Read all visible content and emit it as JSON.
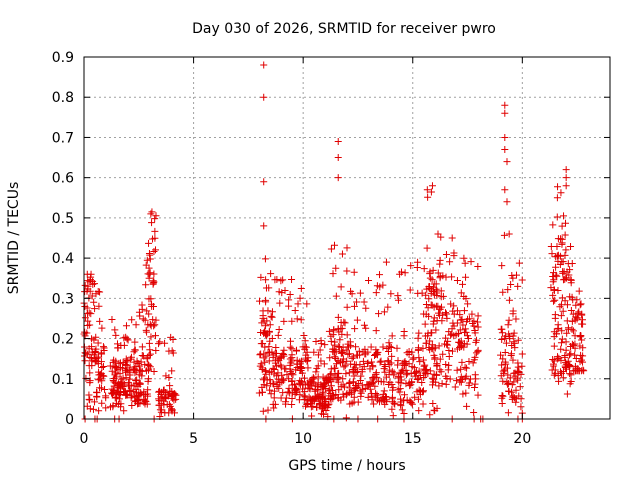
{
  "chart_data": {
    "type": "scatter",
    "title": "Day 030 of 2026, SRMTID for receiver pwro",
    "xlabel": "GPS time / hours",
    "ylabel": "SRMTID / TECUs",
    "xlim": [
      0,
      24
    ],
    "ylim": [
      0,
      0.9
    ],
    "x_ticks": [
      0,
      5,
      10,
      15,
      20
    ],
    "x_tick_labels": [
      "0",
      "5",
      "10",
      "15",
      "20"
    ],
    "y_ticks": [
      0,
      0.1,
      0.2,
      0.3,
      0.4,
      0.5,
      0.6,
      0.7,
      0.8,
      0.9
    ],
    "y_tick_labels": [
      "0",
      "0.1",
      "0.2",
      "0.3",
      "0.4",
      "0.5",
      "0.6",
      "0.7",
      "0.8",
      "0.9"
    ],
    "grid": true,
    "marker": "+",
    "marker_color": "#e00000",
    "clusters": [
      {
        "x_start": 0.0,
        "x_end": 0.55,
        "y_min": 0.0,
        "y_max": 0.36,
        "typical": 0.25,
        "count": 70
      },
      {
        "x_start": 0.55,
        "x_end": 1.0,
        "y_min": 0.0,
        "y_max": 0.32,
        "typical": 0.12,
        "count": 40
      },
      {
        "x_start": 1.2,
        "x_end": 2.2,
        "y_min": 0.02,
        "y_max": 0.25,
        "typical": 0.1,
        "count": 110
      },
      {
        "x_start": 2.2,
        "x_end": 3.0,
        "y_min": 0.02,
        "y_max": 0.3,
        "typical": 0.12,
        "count": 80
      },
      {
        "x_start": 2.8,
        "x_end": 3.3,
        "y_min": 0.1,
        "y_max": 0.52,
        "typical": 0.3,
        "count": 50
      },
      {
        "x_start": 3.4,
        "x_end": 4.2,
        "y_min": 0.0,
        "y_max": 0.22,
        "typical": 0.05,
        "count": 60
      },
      {
        "x_start": 8.0,
        "x_end": 8.6,
        "y_min": 0.0,
        "y_max": 0.44,
        "typical": 0.2,
        "count": 70
      },
      {
        "x_start": 8.6,
        "x_end": 10.2,
        "y_min": 0.0,
        "y_max": 0.35,
        "typical": 0.12,
        "count": 150
      },
      {
        "x_start": 10.2,
        "x_end": 11.2,
        "y_min": 0.0,
        "y_max": 0.22,
        "typical": 0.07,
        "count": 110
      },
      {
        "x_start": 11.2,
        "x_end": 12.2,
        "y_min": 0.0,
        "y_max": 0.45,
        "typical": 0.15,
        "count": 110
      },
      {
        "x_start": 12.2,
        "x_end": 15.5,
        "y_min": 0.0,
        "y_max": 0.39,
        "typical": 0.12,
        "count": 260
      },
      {
        "x_start": 15.5,
        "x_end": 16.4,
        "y_min": 0.0,
        "y_max": 0.58,
        "typical": 0.25,
        "count": 110
      },
      {
        "x_start": 16.4,
        "x_end": 18.0,
        "y_min": 0.0,
        "y_max": 0.45,
        "typical": 0.18,
        "count": 120
      },
      {
        "x_start": 19.0,
        "x_end": 20.0,
        "y_min": 0.0,
        "y_max": 0.46,
        "typical": 0.15,
        "count": 90
      },
      {
        "x_start": 21.3,
        "x_end": 22.3,
        "y_min": 0.06,
        "y_max": 0.62,
        "typical": 0.3,
        "count": 130
      },
      {
        "x_start": 22.3,
        "x_end": 22.8,
        "y_min": 0.12,
        "y_max": 0.35,
        "typical": 0.2,
        "count": 50
      }
    ],
    "notable_points": [
      {
        "x": 8.2,
        "y": 0.88
      },
      {
        "x": 8.2,
        "y": 0.8
      },
      {
        "x": 8.2,
        "y": 0.59
      },
      {
        "x": 8.2,
        "y": 0.48
      },
      {
        "x": 11.6,
        "y": 0.69
      },
      {
        "x": 11.6,
        "y": 0.65
      },
      {
        "x": 11.6,
        "y": 0.6
      },
      {
        "x": 3.1,
        "y": 0.515
      },
      {
        "x": 3.05,
        "y": 0.51
      },
      {
        "x": 0.15,
        "y": 0.36
      },
      {
        "x": 15.9,
        "y": 0.58
      },
      {
        "x": 16.8,
        "y": 0.45
      },
      {
        "x": 19.2,
        "y": 0.78
      },
      {
        "x": 19.2,
        "y": 0.76
      },
      {
        "x": 19.2,
        "y": 0.7
      },
      {
        "x": 19.2,
        "y": 0.67
      },
      {
        "x": 19.3,
        "y": 0.64
      },
      {
        "x": 19.2,
        "y": 0.57
      },
      {
        "x": 19.3,
        "y": 0.54
      },
      {
        "x": 19.4,
        "y": 0.46
      },
      {
        "x": 22.0,
        "y": 0.62
      },
      {
        "x": 22.0,
        "y": 0.6
      },
      {
        "x": 22.0,
        "y": 0.58
      },
      {
        "x": 21.6,
        "y": 0.55
      },
      {
        "x": 13.8,
        "y": 0.39
      },
      {
        "x": 14.4,
        "y": 0.36
      }
    ],
    "zero_points": [
      0.05,
      0.5,
      0.6,
      1.4,
      1.6,
      3.2,
      8.3,
      11.4,
      12.5,
      13.4,
      14.6,
      16.8,
      17.8,
      18.1,
      18.2,
      19.8,
      20.0
    ]
  }
}
